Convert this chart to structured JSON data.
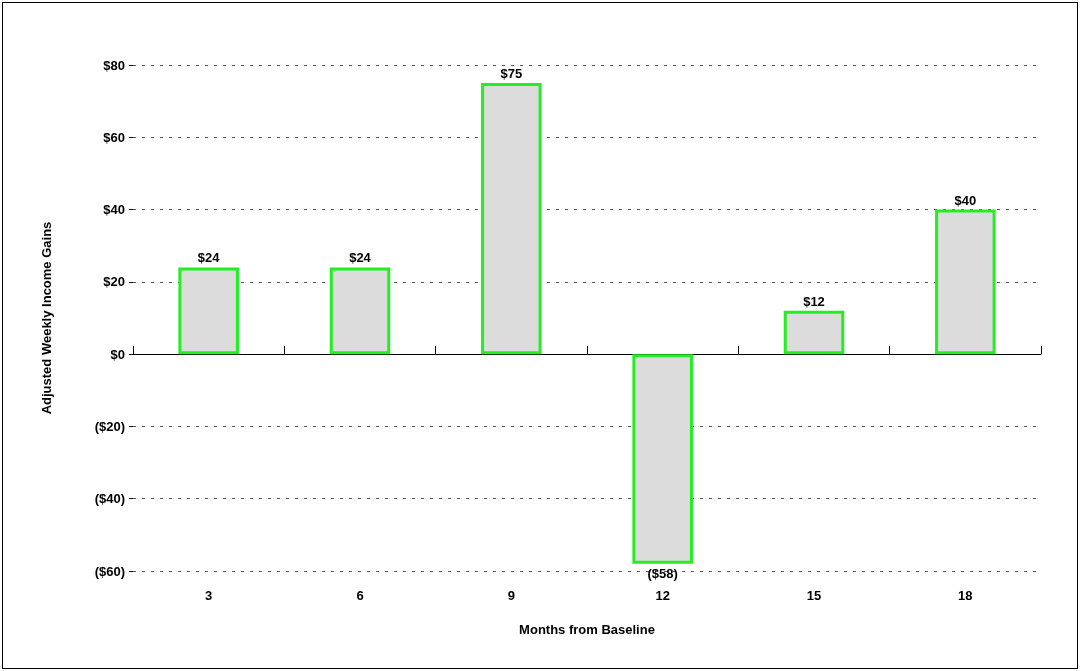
{
  "chart_data": {
    "type": "bar",
    "xlabel": "Months from Baseline",
    "ylabel": "Adjusted Weekly Income Gains",
    "categories": [
      "3",
      "6",
      "9",
      "12",
      "15",
      "18"
    ],
    "values": [
      24,
      24,
      75,
      -58,
      12,
      40
    ],
    "value_labels": [
      "$24",
      "$24",
      "$75",
      "($58)",
      "$12",
      "$40"
    ],
    "color": "#dcdcdc",
    "ylim": [
      -60,
      80
    ],
    "yticks": [
      {
        "value": -60,
        "label": "($60)"
      },
      {
        "value": -40,
        "label": "($40)"
      },
      {
        "value": -20,
        "label": "($20)"
      },
      {
        "value": 0,
        "label": "$0"
      },
      {
        "value": 20,
        "label": "$20"
      },
      {
        "value": 40,
        "label": "$40"
      },
      {
        "value": 60,
        "label": "$60"
      },
      {
        "value": 80,
        "label": "$80"
      }
    ],
    "grid": "y"
  }
}
